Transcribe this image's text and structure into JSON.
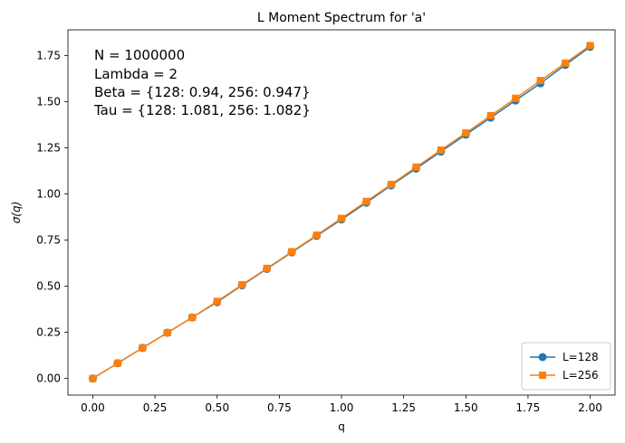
{
  "chart_data": {
    "type": "line",
    "title": "L Moment Spectrum for 'a'",
    "xlabel": "q",
    "ylabel": "σ(q)",
    "xlim": [
      -0.1,
      2.1
    ],
    "ylim": [
      -0.09,
      1.89
    ],
    "xticks": [
      0.0,
      0.25,
      0.5,
      0.75,
      1.0,
      1.25,
      1.5,
      1.75,
      2.0
    ],
    "xtick_labels": [
      "0.00",
      "0.25",
      "0.50",
      "0.75",
      "1.00",
      "1.25",
      "1.50",
      "1.75",
      "2.00"
    ],
    "yticks": [
      0.0,
      0.25,
      0.5,
      0.75,
      1.0,
      1.25,
      1.5,
      1.75
    ],
    "ytick_labels": [
      "0.00",
      "0.25",
      "0.50",
      "0.75",
      "1.00",
      "1.25",
      "1.50",
      "1.75"
    ],
    "grid": false,
    "legend_position": "lower-right",
    "annotation_lines": [
      "N = 1000000",
      "Lambda = 2",
      "Beta = {128: 0.94, 256: 0.947}",
      "Tau = {128: 1.081, 256: 1.082}"
    ],
    "x": [
      0.0,
      0.1,
      0.2,
      0.3,
      0.4,
      0.5,
      0.6,
      0.7,
      0.8,
      0.9,
      1.0,
      1.1,
      1.2,
      1.3,
      1.4,
      1.5,
      1.6,
      1.7,
      1.8,
      1.9,
      2.0
    ],
    "series": [
      {
        "name": "L=128",
        "marker": "circle",
        "color": "#1f77b4",
        "values": [
          0.0,
          0.083,
          0.166,
          0.248,
          0.331,
          0.414,
          0.505,
          0.594,
          0.684,
          0.773,
          0.862,
          0.953,
          1.047,
          1.138,
          1.23,
          1.322,
          1.414,
          1.507,
          1.6,
          1.7,
          1.798
        ]
      },
      {
        "name": "L=256",
        "marker": "square",
        "color": "#ff7f0e",
        "values": [
          0.0,
          0.083,
          0.166,
          0.248,
          0.331,
          0.418,
          0.508,
          0.597,
          0.687,
          0.777,
          0.868,
          0.96,
          1.052,
          1.146,
          1.238,
          1.331,
          1.425,
          1.519,
          1.615,
          1.71,
          1.805
        ]
      }
    ]
  }
}
